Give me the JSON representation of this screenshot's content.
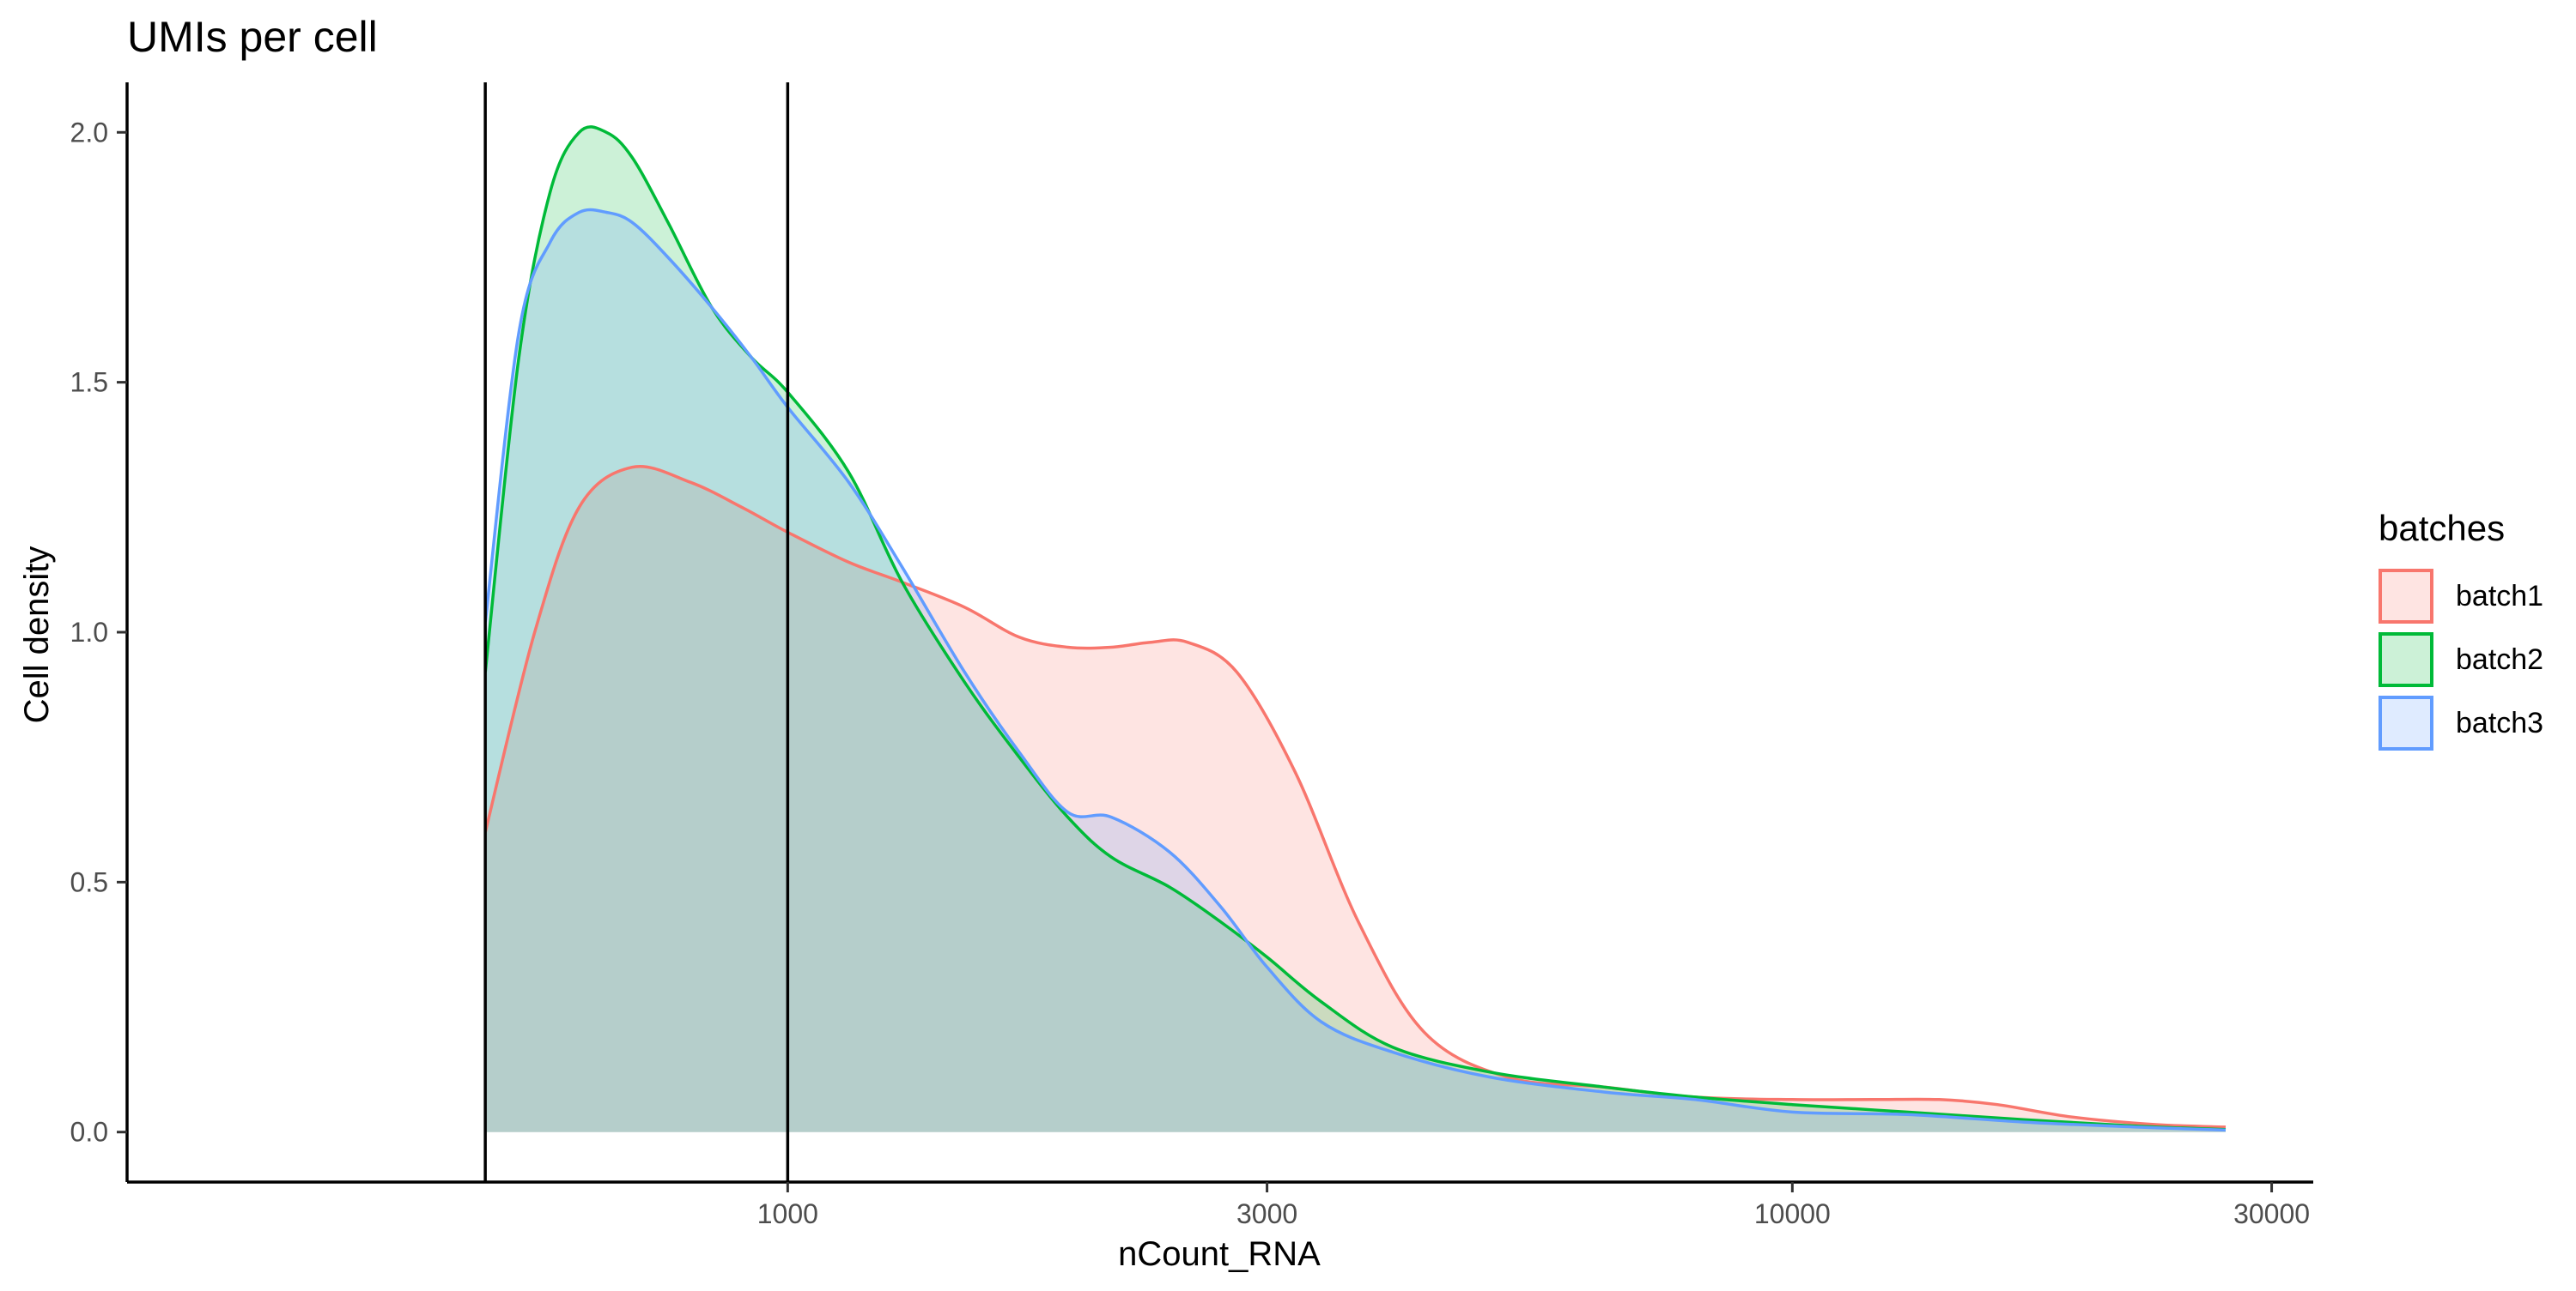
{
  "chart_data": {
    "type": "area",
    "title": "UMIs per cell",
    "xlabel": "nCount_RNA",
    "ylabel": "Cell density",
    "x_scale": "log10",
    "xlim": [
      220,
      33000
    ],
    "ylim": [
      -0.1,
      2.1
    ],
    "x_ticks": [
      1000,
      3000,
      10000,
      30000
    ],
    "x_tick_labels": [
      "1000",
      "3000",
      "10000",
      "30000"
    ],
    "y_ticks": [
      0.0,
      0.5,
      1.0,
      1.5,
      2.0
    ],
    "y_tick_labels": [
      "0.0",
      "0.5",
      "1.0",
      "1.5",
      "2.0"
    ],
    "grid": false,
    "vlines": [
      500,
      1000
    ],
    "legend": {
      "title": "batches",
      "position": "right"
    },
    "series": [
      {
        "name": "batch1",
        "color": "#F8766D",
        "fill": "rgba(248,118,109,0.2)",
        "x": [
          500,
          560,
          620,
          700,
          800,
          900,
          1000,
          1150,
          1300,
          1500,
          1700,
          1900,
          2100,
          2300,
          2500,
          2800,
          3200,
          3700,
          4300,
          5200,
          6500,
          8000,
          10000,
          12000,
          14000,
          16000,
          19000,
          23000,
          27000
        ],
        "y": [
          0.6,
          1.0,
          1.25,
          1.33,
          1.3,
          1.25,
          1.2,
          1.14,
          1.1,
          1.05,
          0.99,
          0.97,
          0.97,
          0.98,
          0.98,
          0.92,
          0.72,
          0.42,
          0.2,
          0.11,
          0.09,
          0.07,
          0.065,
          0.065,
          0.065,
          0.055,
          0.03,
          0.015,
          0.01
        ]
      },
      {
        "name": "batch2",
        "color": "#00BA38",
        "fill": "rgba(0,186,56,0.2)",
        "x": [
          500,
          540,
          580,
          620,
          660,
          700,
          760,
          840,
          920,
          1000,
          1150,
          1300,
          1500,
          1700,
          1900,
          2100,
          2400,
          2700,
          3000,
          3400,
          4000,
          5000,
          6500,
          8000,
          10000,
          13000,
          17000,
          22000,
          27000
        ],
        "y": [
          0.92,
          1.55,
          1.88,
          2.0,
          2.0,
          1.95,
          1.82,
          1.65,
          1.55,
          1.48,
          1.32,
          1.1,
          0.9,
          0.75,
          0.63,
          0.55,
          0.49,
          0.42,
          0.35,
          0.26,
          0.17,
          0.12,
          0.09,
          0.07,
          0.055,
          0.04,
          0.025,
          0.012,
          0.005
        ]
      },
      {
        "name": "batch3",
        "color": "#619CFF",
        "fill": "rgba(97,156,255,0.2)",
        "x": [
          500,
          540,
          580,
          620,
          660,
          700,
          760,
          840,
          920,
          1000,
          1150,
          1300,
          1500,
          1700,
          1900,
          2100,
          2400,
          2700,
          3000,
          3400,
          4000,
          5000,
          6500,
          8000,
          10000,
          13000,
          17000,
          22000,
          27000
        ],
        "y": [
          1.02,
          1.6,
          1.78,
          1.84,
          1.84,
          1.82,
          1.75,
          1.65,
          1.55,
          1.45,
          1.3,
          1.13,
          0.92,
          0.76,
          0.64,
          0.63,
          0.56,
          0.45,
          0.33,
          0.22,
          0.16,
          0.11,
          0.08,
          0.065,
          0.04,
          0.035,
          0.02,
          0.01,
          0.004
        ]
      }
    ]
  }
}
